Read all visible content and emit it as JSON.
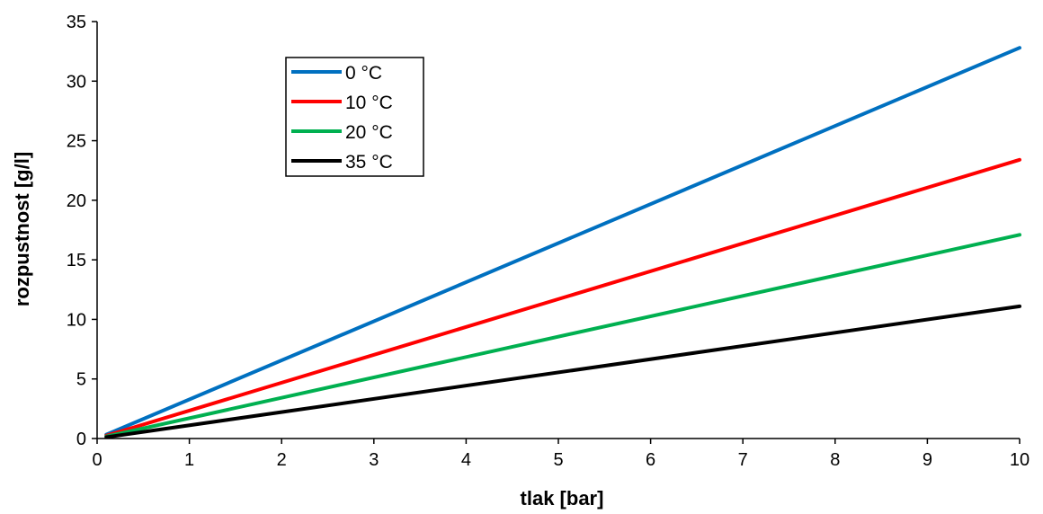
{
  "chart_data": {
    "type": "line",
    "xlabel": "tlak [bar]",
    "ylabel": "rozpustnost [g/l]",
    "xlim": [
      0,
      10
    ],
    "ylim": [
      0,
      35
    ],
    "xticks": [
      0,
      1,
      2,
      3,
      4,
      5,
      6,
      7,
      8,
      9,
      10
    ],
    "yticks": [
      0,
      5,
      10,
      15,
      20,
      25,
      30,
      35
    ],
    "grid": false,
    "legend_position": "top-left",
    "series": [
      {
        "name": "0 °C",
        "color": "#0070C0",
        "x": [
          0.1,
          10
        ],
        "y": [
          0.33,
          32.8
        ]
      },
      {
        "name": "10 °C",
        "color": "#FF0000",
        "x": [
          0.1,
          10
        ],
        "y": [
          0.24,
          23.4
        ]
      },
      {
        "name": "20 °C",
        "color": "#00B050",
        "x": [
          0.1,
          10
        ],
        "y": [
          0.17,
          17.1
        ]
      },
      {
        "name": "35 °C",
        "color": "#000000",
        "x": [
          0.1,
          10
        ],
        "y": [
          0.11,
          11.1
        ]
      }
    ]
  }
}
